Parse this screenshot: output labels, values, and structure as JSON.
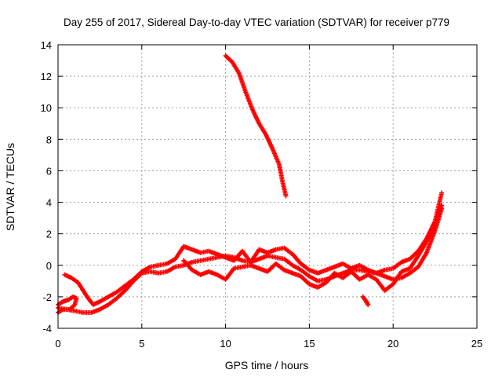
{
  "chart_data": {
    "type": "scatter",
    "title": "Day 255 of 2017, Sidereal Day-to-day VTEC variation (SDTVAR) for receiver p779",
    "xlabel": "GPS time / hours",
    "ylabel": "SDTVAR / TECUs",
    "xlim": [
      0,
      25
    ],
    "ylim": [
      -4,
      14
    ],
    "xticks": [
      "0",
      "5",
      "10",
      "15",
      "20",
      "25"
    ],
    "yticks": [
      "-4",
      "-2",
      "0",
      "2",
      "4",
      "6",
      "8",
      "10",
      "12",
      "14"
    ],
    "grid": true,
    "marker": "plus",
    "series": [
      {
        "name": "SDTVAR",
        "color": "#ff0000",
        "segments": [
          [
            [
              0.0,
              -2.5
            ],
            [
              0.3,
              -2.3
            ],
            [
              0.6,
              -2.2
            ],
            [
              0.9,
              -2.0
            ],
            [
              1.1,
              -2.1
            ],
            [
              1.0,
              -2.5
            ],
            [
              0.7,
              -2.8
            ],
            [
              0.3,
              -2.8
            ],
            [
              0.0,
              -3.0
            ]
          ],
          [
            [
              0.0,
              -2.7
            ],
            [
              0.5,
              -2.8
            ],
            [
              1.0,
              -2.9
            ],
            [
              1.5,
              -3.0
            ],
            [
              2.0,
              -3.0
            ],
            [
              2.5,
              -2.8
            ],
            [
              3.0,
              -2.5
            ],
            [
              3.5,
              -2.1
            ],
            [
              4.0,
              -1.6
            ],
            [
              4.5,
              -1.0
            ],
            [
              5.0,
              -0.5
            ],
            [
              5.5,
              -0.4
            ],
            [
              6.0,
              -0.5
            ],
            [
              6.5,
              -0.4
            ],
            [
              7.0,
              -0.1
            ],
            [
              7.5,
              0.0
            ],
            [
              8.0,
              0.2
            ],
            [
              8.5,
              0.3
            ],
            [
              9.0,
              0.4
            ],
            [
              9.5,
              0.5
            ],
            [
              10.0,
              0.6
            ],
            [
              10.5,
              0.5
            ],
            [
              11.0,
              0.3
            ],
            [
              11.5,
              0.2
            ],
            [
              12.0,
              0.4
            ],
            [
              12.5,
              0.6
            ],
            [
              13.0,
              0.5
            ],
            [
              13.5,
              0.4
            ],
            [
              14.0,
              0.0
            ],
            [
              14.5,
              -0.3
            ],
            [
              15.0,
              -0.7
            ],
            [
              15.5,
              -1.0
            ],
            [
              16.0,
              -0.9
            ],
            [
              16.5,
              -0.7
            ],
            [
              17.0,
              -0.5
            ],
            [
              17.5,
              -0.3
            ],
            [
              18.0,
              -0.3
            ],
            [
              18.5,
              -0.4
            ],
            [
              19.0,
              -0.5
            ],
            [
              19.5,
              -0.7
            ],
            [
              20.0,
              -0.9
            ],
            [
              20.5,
              -0.8
            ],
            [
              21.0,
              -0.5
            ],
            [
              21.5,
              -0.1
            ],
            [
              22.0,
              0.8
            ],
            [
              22.5,
              2.2
            ],
            [
              22.9,
              3.6
            ]
          ],
          [
            [
              0.4,
              -0.6
            ],
            [
              0.8,
              -0.8
            ],
            [
              1.2,
              -1.1
            ],
            [
              1.5,
              -1.6
            ],
            [
              1.8,
              -2.1
            ],
            [
              2.1,
              -2.5
            ],
            [
              2.5,
              -2.3
            ],
            [
              3.0,
              -2.0
            ],
            [
              3.5,
              -1.7
            ],
            [
              4.0,
              -1.3
            ],
            [
              4.5,
              -0.9
            ],
            [
              5.0,
              -0.4
            ],
            [
              5.5,
              -0.1
            ],
            [
              6.0,
              0.0
            ],
            [
              6.5,
              0.1
            ],
            [
              7.0,
              0.4
            ],
            [
              7.5,
              1.2
            ],
            [
              8.0,
              1.0
            ],
            [
              8.5,
              0.8
            ],
            [
              9.0,
              0.9
            ],
            [
              9.5,
              0.7
            ],
            [
              10.0,
              0.5
            ],
            [
              10.5,
              0.3
            ],
            [
              11.0,
              0.9
            ],
            [
              11.5,
              0.2
            ],
            [
              12.0,
              1.0
            ],
            [
              12.5,
              0.8
            ],
            [
              13.0,
              1.0
            ],
            [
              13.5,
              1.1
            ],
            [
              14.0,
              0.7
            ],
            [
              14.5,
              0.1
            ],
            [
              15.0,
              -0.3
            ],
            [
              15.5,
              -0.5
            ],
            [
              16.0,
              -0.3
            ],
            [
              16.5,
              -0.1
            ],
            [
              17.0,
              0.1
            ],
            [
              17.5,
              -0.2
            ],
            [
              18.0,
              0.0
            ],
            [
              18.5,
              -0.3
            ],
            [
              19.0,
              -0.5
            ],
            [
              19.5,
              -0.3
            ],
            [
              20.0,
              -0.2
            ],
            [
              20.5,
              0.2
            ],
            [
              21.0,
              0.4
            ],
            [
              21.5,
              0.9
            ],
            [
              22.0,
              1.7
            ],
            [
              22.5,
              2.8
            ],
            [
              22.9,
              4.6
            ]
          ],
          [
            [
              7.5,
              0.3
            ],
            [
              8.0,
              -0.3
            ],
            [
              8.5,
              -0.6
            ],
            [
              9.0,
              -0.4
            ],
            [
              9.5,
              -0.6
            ],
            [
              10.0,
              -0.9
            ],
            [
              10.5,
              -0.2
            ],
            [
              11.0,
              -0.1
            ],
            [
              11.5,
              0.0
            ],
            [
              12.0,
              -0.2
            ],
            [
              12.5,
              -0.4
            ],
            [
              13.0,
              0.1
            ],
            [
              13.5,
              -0.3
            ],
            [
              14.0,
              -0.5
            ],
            [
              14.5,
              -0.7
            ],
            [
              15.0,
              -1.2
            ],
            [
              15.5,
              -1.4
            ],
            [
              16.0,
              -1.1
            ],
            [
              16.5,
              -0.5
            ],
            [
              17.0,
              -0.8
            ],
            [
              17.5,
              -0.4
            ],
            [
              18.0,
              -0.9
            ],
            [
              18.5,
              -0.6
            ],
            [
              19.0,
              -0.9
            ],
            [
              19.5,
              -1.6
            ],
            [
              20.0,
              -1.2
            ],
            [
              20.5,
              -0.4
            ],
            [
              21.0,
              -0.2
            ],
            [
              21.5,
              0.6
            ],
            [
              22.0,
              1.5
            ],
            [
              22.5,
              2.6
            ],
            [
              22.9,
              3.8
            ]
          ],
          [
            [
              10.0,
              13.3
            ],
            [
              10.4,
              12.9
            ],
            [
              10.8,
              12.2
            ],
            [
              11.2,
              11.0
            ],
            [
              11.6,
              9.9
            ],
            [
              12.0,
              9.0
            ],
            [
              12.4,
              8.3
            ],
            [
              12.8,
              7.4
            ],
            [
              13.2,
              6.4
            ],
            [
              13.4,
              5.3
            ],
            [
              13.6,
              4.4
            ]
          ],
          [
            [
              18.2,
              -2.0
            ],
            [
              18.4,
              -2.3
            ],
            [
              18.5,
              -2.5
            ]
          ]
        ]
      }
    ]
  }
}
